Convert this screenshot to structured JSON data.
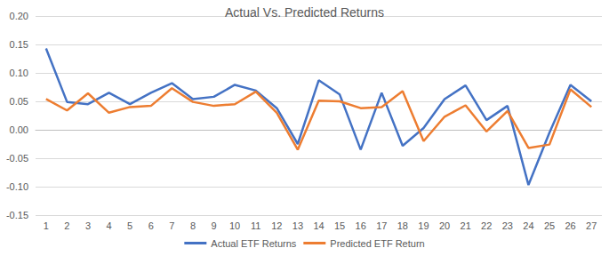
{
  "chart_data": {
    "type": "line",
    "title": "Actual Vs. Predicted Returns",
    "categories": [
      "1",
      "2",
      "3",
      "4",
      "5",
      "6",
      "7",
      "8",
      "9",
      "10",
      "11",
      "12",
      "13",
      "14",
      "15",
      "16",
      "17",
      "18",
      "19",
      "20",
      "21",
      "22",
      "23",
      "24",
      "25",
      "26",
      "27"
    ],
    "series": [
      {
        "name": "Actual ETF Returns",
        "color": "#4472c4",
        "values": [
          0.143,
          0.049,
          0.045,
          0.065,
          0.045,
          0.065,
          0.082,
          0.054,
          0.058,
          0.079,
          0.069,
          0.038,
          -0.025,
          0.087,
          0.062,
          -0.035,
          0.065,
          -0.028,
          0.003,
          0.054,
          0.078,
          0.017,
          0.042,
          -0.097,
          -0.005,
          0.079,
          0.05
        ]
      },
      {
        "name": "Predicted ETF Return",
        "color": "#ed7d31",
        "values": [
          0.054,
          0.034,
          0.064,
          0.03,
          0.04,
          0.042,
          0.073,
          0.049,
          0.042,
          0.045,
          0.067,
          0.03,
          -0.035,
          0.051,
          0.05,
          0.038,
          0.04,
          0.068,
          -0.02,
          0.023,
          0.043,
          -0.003,
          0.033,
          -0.032,
          -0.026,
          0.071,
          0.04
        ]
      }
    ],
    "ylim": [
      -0.15,
      0.2
    ],
    "yticks": [
      -0.15,
      {
        "value": -0.1,
        "label": "-0.10"
      },
      -0.05,
      {
        "value": 0,
        "label": "0.00"
      },
      0.05,
      {
        "value": 0.1,
        "label": "0.10"
      },
      0.15,
      {
        "value": 0.2,
        "label": "0.20"
      }
    ],
    "grid": true,
    "legend": "bottom"
  }
}
